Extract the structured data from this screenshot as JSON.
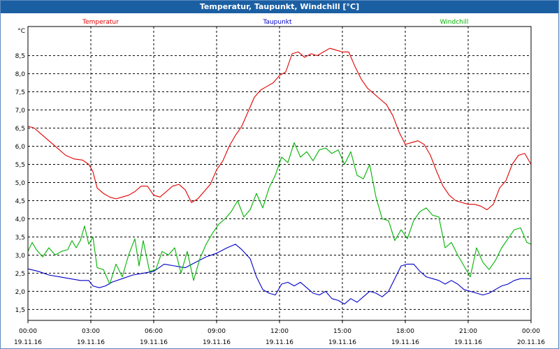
{
  "window": {
    "title": "Temperatur, Taupunkt, Windchill [°C]"
  },
  "chart_data": {
    "type": "line",
    "title": "Temperatur, Taupunkt, Windchill [°C]",
    "ylabel": "°C",
    "ylim": [
      1.2,
      9.3
    ],
    "xlim": [
      0,
      24
    ],
    "grid": true,
    "legend": "top",
    "yticks": [
      "1,5",
      "2,0",
      "2,5",
      "3,0",
      "3,5",
      "4,0",
      "4,5",
      "5,0",
      "5,5",
      "6,0",
      "6,5",
      "7,0",
      "7,5",
      "8,0",
      "8,5"
    ],
    "xticks": [
      {
        "time": "00:00",
        "date": "19.11.16"
      },
      {
        "time": "03:00",
        "date": "19.11.16"
      },
      {
        "time": "06:00",
        "date": "19.11.16"
      },
      {
        "time": "09:00",
        "date": "19.11.16"
      },
      {
        "time": "12:00",
        "date": "19.11.16"
      },
      {
        "time": "15:00",
        "date": "19.11.16"
      },
      {
        "time": "18:00",
        "date": "19.11.16"
      },
      {
        "time": "21:00",
        "date": "19.11.16"
      },
      {
        "time": "00:00",
        "date": "20.11.16"
      }
    ],
    "series": [
      {
        "name": "Temperatur",
        "color": "#e00000",
        "points": [
          [
            0,
            6.55
          ],
          [
            0.3,
            6.5
          ],
          [
            0.6,
            6.35
          ],
          [
            1.0,
            6.15
          ],
          [
            1.4,
            5.95
          ],
          [
            1.8,
            5.75
          ],
          [
            2.2,
            5.65
          ],
          [
            2.6,
            5.62
          ],
          [
            2.9,
            5.5
          ],
          [
            3.1,
            5.3
          ],
          [
            3.3,
            4.85
          ],
          [
            3.6,
            4.7
          ],
          [
            3.9,
            4.6
          ],
          [
            4.2,
            4.55
          ],
          [
            4.5,
            4.6
          ],
          [
            4.8,
            4.65
          ],
          [
            5.1,
            4.75
          ],
          [
            5.4,
            4.9
          ],
          [
            5.7,
            4.9
          ],
          [
            6.0,
            4.65
          ],
          [
            6.3,
            4.6
          ],
          [
            6.6,
            4.75
          ],
          [
            6.9,
            4.9
          ],
          [
            7.2,
            4.95
          ],
          [
            7.5,
            4.8
          ],
          [
            7.8,
            4.45
          ],
          [
            8.1,
            4.55
          ],
          [
            8.4,
            4.75
          ],
          [
            8.7,
            4.95
          ],
          [
            9.0,
            5.35
          ],
          [
            9.3,
            5.6
          ],
          [
            9.6,
            6.0
          ],
          [
            9.9,
            6.3
          ],
          [
            10.2,
            6.55
          ],
          [
            10.5,
            6.95
          ],
          [
            10.8,
            7.35
          ],
          [
            11.1,
            7.55
          ],
          [
            11.4,
            7.65
          ],
          [
            11.7,
            7.75
          ],
          [
            12.0,
            7.95
          ],
          [
            12.3,
            8.05
          ],
          [
            12.6,
            8.55
          ],
          [
            12.9,
            8.6
          ],
          [
            13.2,
            8.45
          ],
          [
            13.5,
            8.55
          ],
          [
            13.8,
            8.5
          ],
          [
            14.1,
            8.6
          ],
          [
            14.4,
            8.7
          ],
          [
            14.7,
            8.65
          ],
          [
            15.0,
            8.6
          ],
          [
            15.3,
            8.6
          ],
          [
            15.6,
            8.2
          ],
          [
            15.9,
            7.85
          ],
          [
            16.2,
            7.6
          ],
          [
            16.5,
            7.45
          ],
          [
            16.8,
            7.3
          ],
          [
            17.1,
            7.15
          ],
          [
            17.4,
            6.85
          ],
          [
            17.7,
            6.4
          ],
          [
            18.0,
            6.05
          ],
          [
            18.3,
            6.1
          ],
          [
            18.6,
            6.15
          ],
          [
            18.9,
            6.05
          ],
          [
            19.2,
            5.75
          ],
          [
            19.5,
            5.3
          ],
          [
            19.8,
            4.9
          ],
          [
            20.1,
            4.65
          ],
          [
            20.4,
            4.5
          ],
          [
            20.7,
            4.45
          ],
          [
            21.0,
            4.4
          ],
          [
            21.3,
            4.4
          ],
          [
            21.6,
            4.35
          ],
          [
            21.9,
            4.25
          ],
          [
            22.2,
            4.4
          ],
          [
            22.5,
            4.85
          ],
          [
            22.8,
            5.05
          ],
          [
            23.1,
            5.5
          ],
          [
            23.4,
            5.75
          ],
          [
            23.7,
            5.8
          ],
          [
            24.0,
            5.5
          ]
        ]
      },
      {
        "name": "Taupunkt",
        "color": "#0000c8",
        "points": [
          [
            0,
            2.62
          ],
          [
            0.5,
            2.55
          ],
          [
            1.0,
            2.45
          ],
          [
            1.5,
            2.4
          ],
          [
            2.0,
            2.35
          ],
          [
            2.5,
            2.3
          ],
          [
            2.9,
            2.3
          ],
          [
            3.1,
            2.15
          ],
          [
            3.4,
            2.1
          ],
          [
            3.7,
            2.15
          ],
          [
            4.0,
            2.25
          ],
          [
            4.5,
            2.35
          ],
          [
            5.0,
            2.45
          ],
          [
            5.5,
            2.5
          ],
          [
            6.0,
            2.55
          ],
          [
            6.5,
            2.75
          ],
          [
            7.0,
            2.7
          ],
          [
            7.5,
            2.65
          ],
          [
            8.0,
            2.8
          ],
          [
            8.5,
            2.95
          ],
          [
            9.0,
            3.05
          ],
          [
            9.5,
            3.2
          ],
          [
            9.9,
            3.3
          ],
          [
            10.2,
            3.15
          ],
          [
            10.6,
            2.9
          ],
          [
            10.9,
            2.4
          ],
          [
            11.2,
            2.05
          ],
          [
            11.5,
            1.95
          ],
          [
            11.8,
            1.9
          ],
          [
            12.1,
            2.2
          ],
          [
            12.4,
            2.25
          ],
          [
            12.7,
            2.15
          ],
          [
            13.0,
            2.25
          ],
          [
            13.3,
            2.1
          ],
          [
            13.6,
            1.95
          ],
          [
            13.9,
            1.9
          ],
          [
            14.2,
            2.0
          ],
          [
            14.5,
            1.8
          ],
          [
            14.8,
            1.75
          ],
          [
            15.1,
            1.65
          ],
          [
            15.4,
            1.8
          ],
          [
            15.7,
            1.7
          ],
          [
            16.0,
            1.85
          ],
          [
            16.3,
            2.0
          ],
          [
            16.6,
            1.95
          ],
          [
            16.9,
            1.85
          ],
          [
            17.2,
            2.0
          ],
          [
            17.5,
            2.35
          ],
          [
            17.8,
            2.7
          ],
          [
            18.1,
            2.75
          ],
          [
            18.4,
            2.75
          ],
          [
            18.7,
            2.55
          ],
          [
            19.0,
            2.4
          ],
          [
            19.3,
            2.35
          ],
          [
            19.6,
            2.3
          ],
          [
            19.9,
            2.2
          ],
          [
            20.2,
            2.3
          ],
          [
            20.5,
            2.2
          ],
          [
            20.8,
            2.05
          ],
          [
            21.1,
            2.0
          ],
          [
            21.4,
            1.95
          ],
          [
            21.7,
            1.9
          ],
          [
            22.0,
            1.95
          ],
          [
            22.3,
            2.05
          ],
          [
            22.6,
            2.15
          ],
          [
            22.9,
            2.2
          ],
          [
            23.2,
            2.3
          ],
          [
            23.5,
            2.35
          ],
          [
            23.8,
            2.35
          ],
          [
            24.0,
            2.35
          ]
        ]
      },
      {
        "name": "Windchill",
        "color": "#00b400",
        "points": [
          [
            0,
            3.1
          ],
          [
            0.2,
            3.35
          ],
          [
            0.4,
            3.15
          ],
          [
            0.7,
            2.95
          ],
          [
            1.0,
            3.2
          ],
          [
            1.3,
            3.0
          ],
          [
            1.6,
            3.1
          ],
          [
            1.9,
            3.15
          ],
          [
            2.1,
            3.4
          ],
          [
            2.3,
            3.2
          ],
          [
            2.5,
            3.4
          ],
          [
            2.7,
            3.8
          ],
          [
            2.9,
            3.3
          ],
          [
            3.1,
            3.5
          ],
          [
            3.3,
            2.65
          ],
          [
            3.6,
            2.6
          ],
          [
            3.9,
            2.2
          ],
          [
            4.2,
            2.75
          ],
          [
            4.5,
            2.4
          ],
          [
            4.8,
            3.0
          ],
          [
            5.1,
            3.45
          ],
          [
            5.3,
            2.7
          ],
          [
            5.5,
            3.4
          ],
          [
            5.8,
            2.55
          ],
          [
            6.1,
            2.6
          ],
          [
            6.4,
            3.1
          ],
          [
            6.7,
            3.0
          ],
          [
            7.0,
            3.2
          ],
          [
            7.3,
            2.5
          ],
          [
            7.6,
            3.1
          ],
          [
            7.9,
            2.3
          ],
          [
            8.2,
            2.9
          ],
          [
            8.5,
            3.3
          ],
          [
            8.8,
            3.6
          ],
          [
            9.1,
            3.85
          ],
          [
            9.4,
            4.0
          ],
          [
            9.7,
            4.2
          ],
          [
            10.0,
            4.5
          ],
          [
            10.3,
            4.05
          ],
          [
            10.6,
            4.25
          ],
          [
            10.9,
            4.7
          ],
          [
            11.2,
            4.3
          ],
          [
            11.5,
            4.85
          ],
          [
            11.8,
            5.2
          ],
          [
            12.1,
            5.7
          ],
          [
            12.4,
            5.55
          ],
          [
            12.7,
            6.1
          ],
          [
            13.0,
            5.7
          ],
          [
            13.3,
            5.85
          ],
          [
            13.6,
            5.6
          ],
          [
            13.9,
            5.9
          ],
          [
            14.2,
            5.95
          ],
          [
            14.5,
            5.8
          ],
          [
            14.8,
            5.9
          ],
          [
            15.1,
            5.5
          ],
          [
            15.4,
            5.85
          ],
          [
            15.7,
            5.2
          ],
          [
            16.0,
            5.1
          ],
          [
            16.3,
            5.5
          ],
          [
            16.6,
            4.6
          ],
          [
            16.9,
            4.0
          ],
          [
            17.2,
            3.95
          ],
          [
            17.5,
            3.4
          ],
          [
            17.8,
            3.7
          ],
          [
            18.1,
            3.45
          ],
          [
            18.4,
            3.95
          ],
          [
            18.7,
            4.2
          ],
          [
            19.0,
            4.3
          ],
          [
            19.3,
            4.1
          ],
          [
            19.6,
            4.05
          ],
          [
            19.9,
            3.2
          ],
          [
            20.2,
            3.35
          ],
          [
            20.5,
            3.0
          ],
          [
            20.8,
            2.7
          ],
          [
            21.1,
            2.4
          ],
          [
            21.4,
            3.2
          ],
          [
            21.7,
            2.8
          ],
          [
            22.0,
            2.6
          ],
          [
            22.3,
            2.85
          ],
          [
            22.6,
            3.2
          ],
          [
            22.9,
            3.45
          ],
          [
            23.2,
            3.7
          ],
          [
            23.5,
            3.75
          ],
          [
            23.8,
            3.35
          ],
          [
            24.0,
            3.3
          ]
        ]
      }
    ]
  }
}
